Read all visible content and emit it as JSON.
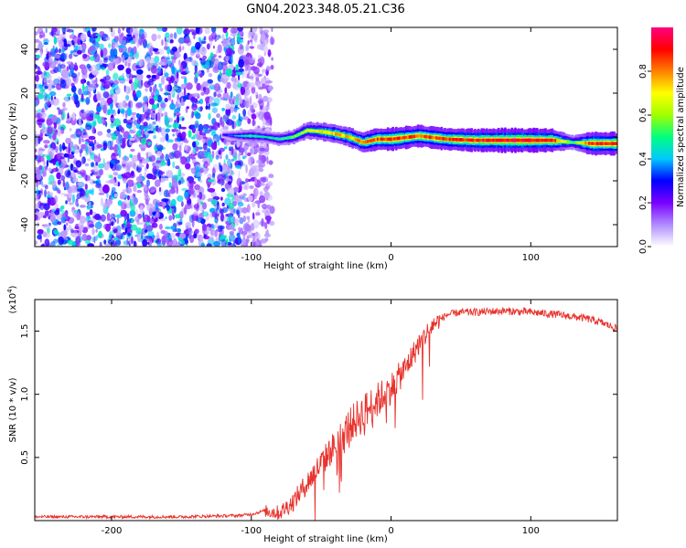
{
  "title": "GN04.2023.348.05.21.C36",
  "chart_data": [
    {
      "type": "heatmap",
      "xlabel": "Height of straight line (km)",
      "ylabel": "Frequency (Hz)",
      "xlim": [
        -255,
        162
      ],
      "ylim": [
        -50,
        50
      ],
      "xticks": [
        -200,
        -100,
        0,
        100
      ],
      "yticks": [
        -40,
        -20,
        0,
        20,
        40
      ],
      "colorbar": {
        "label": "Normalized spectral amplitude",
        "range": [
          0,
          1
        ],
        "ticks": [
          "0.0",
          "0.2",
          "0.4",
          "0.6",
          "0.8"
        ],
        "colors": [
          "#ffffff",
          "#b08cff",
          "#7a00ff",
          "#0000ff",
          "#00c8ff",
          "#00ff80",
          "#a0ff00",
          "#ffff00",
          "#ff8000",
          "#ff0000",
          "#ff0080"
        ]
      },
      "signal_track": [
        {
          "x": -120,
          "freq": 1.0,
          "amp": 0.3
        },
        {
          "x": -110,
          "freq": 0.5,
          "amp": 0.45
        },
        {
          "x": -100,
          "freq": 0.5,
          "amp": 0.55
        },
        {
          "x": -90,
          "freq": 0.0,
          "amp": 0.5
        },
        {
          "x": -80,
          "freq": -1.0,
          "amp": 0.55
        },
        {
          "x": -70,
          "freq": 0.0,
          "amp": 0.6
        },
        {
          "x": -60,
          "freq": 3.0,
          "amp": 0.7
        },
        {
          "x": -50,
          "freq": 2.5,
          "amp": 0.75
        },
        {
          "x": -40,
          "freq": 1.5,
          "amp": 0.8
        },
        {
          "x": -30,
          "freq": 0.0,
          "amp": 0.8
        },
        {
          "x": -20,
          "freq": -2.5,
          "amp": 0.85
        },
        {
          "x": -10,
          "freq": -1.0,
          "amp": 0.9
        },
        {
          "x": 0,
          "freq": -1.0,
          "amp": 0.95
        },
        {
          "x": 20,
          "freq": 0.5,
          "amp": 0.9
        },
        {
          "x": 40,
          "freq": -1.0,
          "amp": 0.92
        },
        {
          "x": 60,
          "freq": -1.5,
          "amp": 0.95
        },
        {
          "x": 80,
          "freq": -1.5,
          "amp": 1.0
        },
        {
          "x": 100,
          "freq": -1.5,
          "amp": 1.0
        },
        {
          "x": 115,
          "freq": -1.5,
          "amp": 0.95
        },
        {
          "x": 130,
          "freq": -2.5,
          "amp": 0.6
        },
        {
          "x": 145,
          "freq": -3.0,
          "amp": 0.98
        },
        {
          "x": 160,
          "freq": -3.0,
          "amp": 0.95
        }
      ]
    },
    {
      "type": "line",
      "xlabel": "Height of straight line (km)",
      "ylabel": "SNR (10 * v/v)",
      "y_multiplier": "(x10^4)",
      "y_multiplier_base": "(x10",
      "y_multiplier_exp": "4",
      "y_multiplier_close": ")",
      "xlim": [
        -255,
        162
      ],
      "ylim": [
        0,
        1.75
      ],
      "xticks": [
        -200,
        -100,
        0,
        100
      ],
      "yticks": [
        0.5,
        1.0,
        1.5
      ],
      "series": [
        {
          "color": "#e8322d",
          "x": [
            -255,
            -200,
            -150,
            -110,
            -100,
            -90,
            -80,
            -70,
            -60,
            -50,
            -40,
            -30,
            -20,
            -10,
            0,
            10,
            20,
            30,
            40,
            50,
            60,
            80,
            100,
            120,
            140,
            150,
            162
          ],
          "y": [
            0.03,
            0.03,
            0.03,
            0.04,
            0.05,
            0.08,
            0.06,
            0.15,
            0.3,
            0.45,
            0.6,
            0.75,
            0.85,
            0.95,
            1.05,
            1.2,
            1.4,
            1.55,
            1.63,
            1.65,
            1.65,
            1.66,
            1.65,
            1.63,
            1.6,
            1.57,
            1.52
          ]
        }
      ]
    }
  ]
}
